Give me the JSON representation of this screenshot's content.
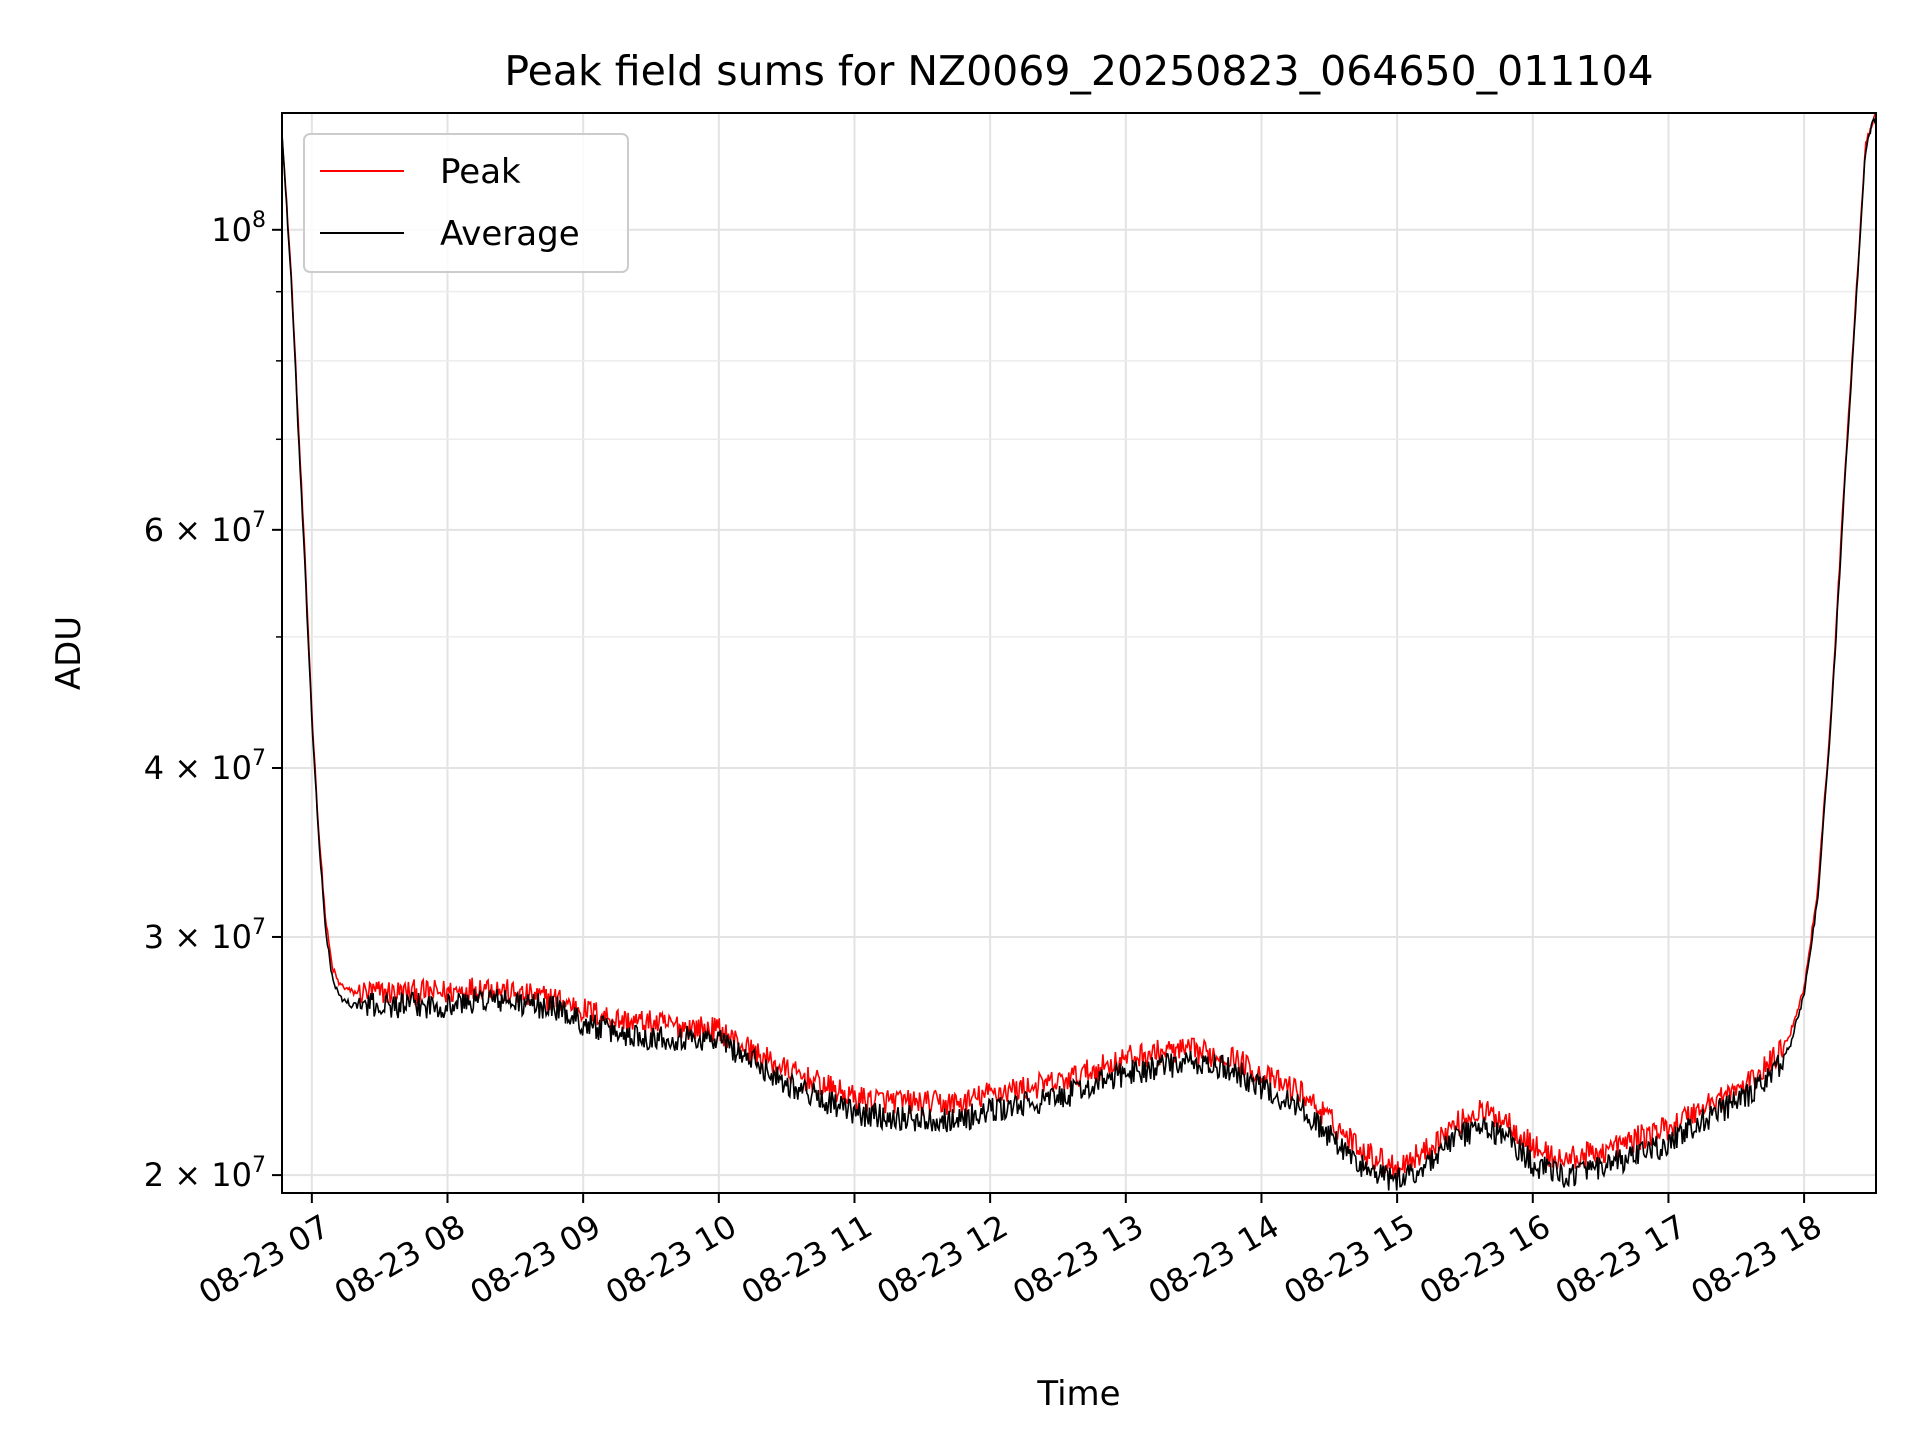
{
  "chart_data": {
    "type": "line",
    "title": "Peak field sums for NZ0069_20250823_064650_011104",
    "xlabel": "Time",
    "ylabel": "ADU",
    "yscale": "log",
    "ylim": [
      19400000,
      122000000
    ],
    "xlim_hours": [
      6.78,
      18.53
    ],
    "grid": true,
    "legend_position": "top-left",
    "x_ticks": [
      "08-23 07",
      "08-23 08",
      "08-23 09",
      "08-23 10",
      "08-23 11",
      "08-23 12",
      "08-23 13",
      "08-23 14",
      "08-23 15",
      "08-23 16",
      "08-23 17",
      "08-23 18"
    ],
    "y_ticks": [
      {
        "value": 20000000,
        "mantissa": "2",
        "exp": "7"
      },
      {
        "value": 30000000,
        "mantissa": "3",
        "exp": "7"
      },
      {
        "value": 40000000,
        "mantissa": "4",
        "exp": "7"
      },
      {
        "value": 60000000,
        "mantissa": "6",
        "exp": "7"
      },
      {
        "value": 100000000,
        "mantissa": "",
        "exp": "8"
      }
    ],
    "y_minor_ticks": [
      50000000,
      70000000,
      80000000,
      90000000
    ],
    "series": [
      {
        "name": "Peak",
        "color": "#ff0000",
        "noise": 0.022,
        "x": [
          6.78,
          6.85,
          6.9,
          6.95,
          7.0,
          7.05,
          7.1,
          7.15,
          7.2,
          7.3,
          7.5,
          7.8,
          8.0,
          8.3,
          8.5,
          8.8,
          9.0,
          9.3,
          9.5,
          10.0,
          10.3,
          10.5,
          11.0,
          11.5,
          11.8,
          12.0,
          12.5,
          13.0,
          13.3,
          13.5,
          13.8,
          14.0,
          14.3,
          14.6,
          14.8,
          15.0,
          15.2,
          15.4,
          15.6,
          15.8,
          16.0,
          16.2,
          16.5,
          17.0,
          17.3,
          17.6,
          17.8,
          17.9,
          18.0,
          18.1,
          18.2,
          18.3,
          18.4,
          18.45,
          18.5,
          18.53
        ],
        "y": [
          118000000,
          92000000,
          72000000,
          57000000,
          44000000,
          36000000,
          31000000,
          28500000,
          27700000,
          27300000,
          27300000,
          27300000,
          27300000,
          27600000,
          27200000,
          27000000,
          26500000,
          26000000,
          25900000,
          25600000,
          24500000,
          23900000,
          22800000,
          22600000,
          22600000,
          23000000,
          23400000,
          24400000,
          24700000,
          24700000,
          24400000,
          23700000,
          23000000,
          21500000,
          20700000,
          20300000,
          20800000,
          21700000,
          22300000,
          22000000,
          21000000,
          20500000,
          20800000,
          21700000,
          22600000,
          23400000,
          24500000,
          25500000,
          27500000,
          32500000,
          44000000,
          66000000,
          95000000,
          115000000,
          120000000,
          121500000
        ]
      },
      {
        "name": "Average",
        "color": "#000000",
        "noise": 0.022,
        "x": [
          6.78,
          6.85,
          6.9,
          6.95,
          7.0,
          7.05,
          7.1,
          7.15,
          7.2,
          7.3,
          7.5,
          7.8,
          8.0,
          8.3,
          8.5,
          8.8,
          9.0,
          9.3,
          9.5,
          10.0,
          10.3,
          10.5,
          11.0,
          11.5,
          11.8,
          12.0,
          12.5,
          13.0,
          13.3,
          13.5,
          13.8,
          14.0,
          14.3,
          14.6,
          14.8,
          15.0,
          15.2,
          15.4,
          15.6,
          15.8,
          16.0,
          16.2,
          16.5,
          17.0,
          17.3,
          17.6,
          17.8,
          17.9,
          18.0,
          18.1,
          18.2,
          18.3,
          18.4,
          18.45,
          18.5,
          18.53
        ],
        "y": [
          118000000,
          91000000,
          71000000,
          56000000,
          43500000,
          35500000,
          30500000,
          28000000,
          27100000,
          26700000,
          26700000,
          26700000,
          26700000,
          27000000,
          26800000,
          26600000,
          25900000,
          25400000,
          25300000,
          25200000,
          24100000,
          23400000,
          22200000,
          22000000,
          22000000,
          22300000,
          22800000,
          23800000,
          24100000,
          24200000,
          23900000,
          23200000,
          22400000,
          20900000,
          20100000,
          19800000,
          20300000,
          21200000,
          21700000,
          21400000,
          20400000,
          20000000,
          20200000,
          21100000,
          22100000,
          22900000,
          24000000,
          25000000,
          27200000,
          32000000,
          43500000,
          65000000,
          94000000,
          114000000,
          119500000,
          121000000
        ]
      }
    ]
  }
}
